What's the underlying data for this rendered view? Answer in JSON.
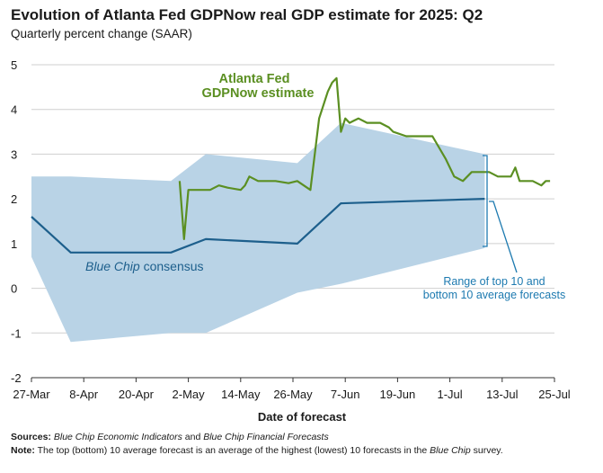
{
  "header": {
    "title": "Evolution of Atlanta Fed GDPNow real GDP estimate for 2025: Q2",
    "subtitle": "Quarterly percent change (SAAR)"
  },
  "footer": {
    "sources_label": "Sources:",
    "sources_part1": "Blue Chip Economic Indicators",
    "sources_and": " and ",
    "sources_part2": "Blue Chip Financial Forecasts",
    "note_label": "Note:",
    "note_text": " The top (bottom) 10 average forecast is an average of the highest (lowest) 10 forecasts in the ",
    "note_italic": "Blue Chip",
    "note_end": " survey."
  },
  "chart_data": {
    "type": "line",
    "xlabel": "Date of forecast",
    "ylabel": "",
    "x_ticks": [
      "27-Mar",
      "8-Apr",
      "20-Apr",
      "2-May",
      "14-May",
      "26-May",
      "7-Jun",
      "19-Jun",
      "1-Jul",
      "13-Jul",
      "25-Jul"
    ],
    "x_tick_days": [
      0,
      12,
      24,
      36,
      48,
      60,
      72,
      84,
      96,
      108,
      120
    ],
    "xlim": [
      0,
      120
    ],
    "y_ticks": [
      -2,
      -1,
      0,
      1,
      2,
      3,
      4,
      5
    ],
    "ylim": [
      -2,
      5
    ],
    "grid": "horizontal",
    "colors": {
      "gdpnow": "#5b8f22",
      "bluechip": "#1d5f8c",
      "range": "#b9d3e6",
      "annotation": "#1d7ab0"
    },
    "annotations": {
      "gdpnow_line1": "Atlanta Fed",
      "gdpnow_line2": "GDPNow estimate",
      "bluechip_italic": "Blue Chip",
      "bluechip_rest": " consensus",
      "range_line1": "Range of top 10 and",
      "range_line2": "bottom 10 average forecasts"
    },
    "series": [
      {
        "name": "Atlanta Fed GDPNow estimate",
        "x": [
          34,
          35,
          36,
          38,
          41,
          43,
          45,
          48,
          49,
          50,
          52,
          53,
          56,
          59,
          61,
          64,
          66,
          68,
          69,
          70,
          71,
          72,
          73,
          74,
          75,
          77,
          80,
          82,
          83,
          86,
          88,
          89,
          92,
          95,
          97,
          99,
          101,
          102,
          105,
          107,
          110,
          111,
          112,
          115,
          117,
          118,
          119
        ],
        "y": [
          2.4,
          1.1,
          2.2,
          2.2,
          2.2,
          2.3,
          2.25,
          2.2,
          2.3,
          2.5,
          2.4,
          2.4,
          2.4,
          2.35,
          2.4,
          2.2,
          3.8,
          4.4,
          4.6,
          4.7,
          3.5,
          3.8,
          3.7,
          3.75,
          3.8,
          3.7,
          3.7,
          3.6,
          3.5,
          3.4,
          3.4,
          3.4,
          3.4,
          2.9,
          2.5,
          2.4,
          2.6,
          2.6,
          2.6,
          2.5,
          2.5,
          2.7,
          2.4,
          2.4,
          2.3,
          2.4,
          2.4
        ]
      },
      {
        "name": "Blue Chip consensus",
        "x": [
          0,
          9,
          32,
          40,
          61,
          71,
          104
        ],
        "y": [
          1.6,
          0.8,
          0.8,
          1.1,
          1.0,
          1.9,
          2.0
        ]
      }
    ],
    "range_band": {
      "x": [
        0,
        9,
        32,
        40,
        61,
        71,
        104
      ],
      "upper": [
        2.5,
        2.5,
        2.4,
        3.0,
        2.8,
        3.7,
        3.0
      ],
      "lower": [
        0.7,
        -1.2,
        -1.0,
        -1.0,
        -0.1,
        0.1,
        0.9
      ]
    }
  }
}
